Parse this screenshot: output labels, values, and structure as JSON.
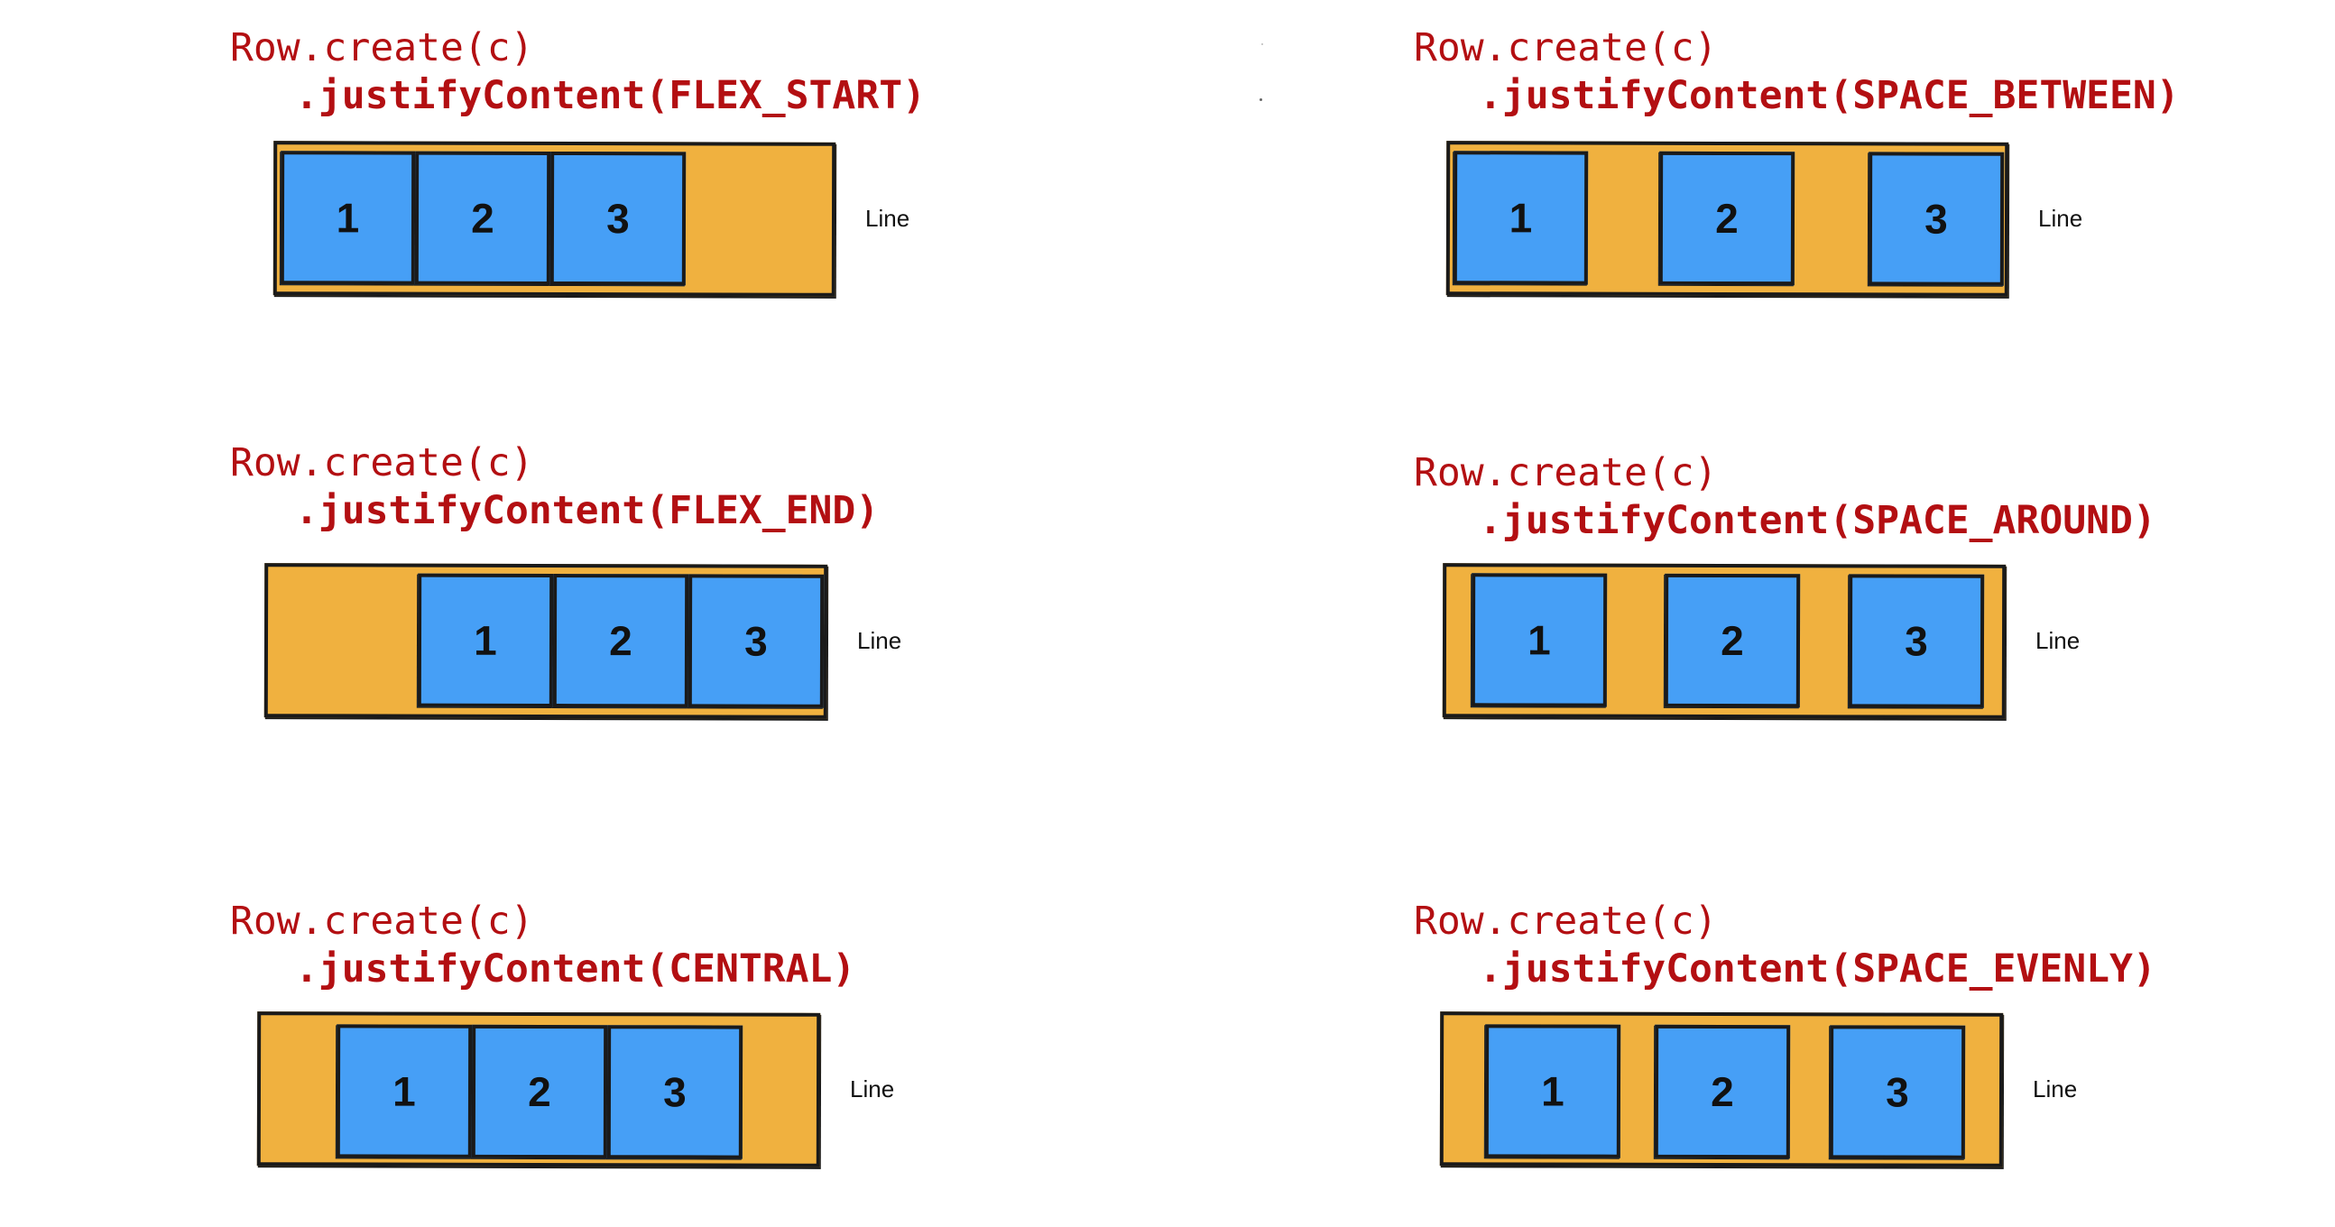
{
  "panels": [
    {
      "id": "flex-start",
      "code_line1": "Row.create(c)",
      "code_line2": ".justifyContent(FLEX_START)",
      "items": [
        "1",
        "2",
        "3"
      ],
      "label": "Line"
    },
    {
      "id": "space-between",
      "code_line1": "Row.create(c)",
      "code_line2": ".justifyContent(SPACE_BETWEEN)",
      "items": [
        "1",
        "2",
        "3"
      ],
      "label": "Line"
    },
    {
      "id": "flex-end",
      "code_line1": "Row.create(c)",
      "code_line2": ".justifyContent(FLEX_END)",
      "items": [
        "1",
        "2",
        "3"
      ],
      "label": "Line"
    },
    {
      "id": "space-around",
      "code_line1": "Row.create(c)",
      "code_line2": ".justifyContent(SPACE_AROUND)",
      "items": [
        "1",
        "2",
        "3"
      ],
      "label": "Line"
    },
    {
      "id": "central",
      "code_line1": "Row.create(c)",
      "code_line2": ".justifyContent(CENTRAL)",
      "items": [
        "1",
        "2",
        "3"
      ],
      "label": "Line"
    },
    {
      "id": "space-evenly",
      "code_line1": "Row.create(c)",
      "code_line2": ".justifyContent(SPACE_EVENLY)",
      "items": [
        "1",
        "2",
        "3"
      ],
      "label": "Line"
    }
  ],
  "colors": {
    "code": "#b30f12",
    "container": "#f0b13f",
    "item": "#469ff6",
    "border": "#1a1a1a"
  }
}
